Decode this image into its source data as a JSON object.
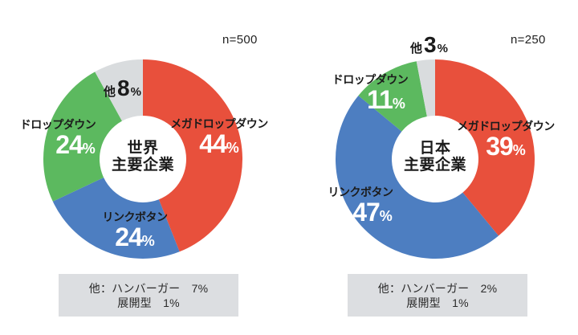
{
  "ui": {
    "percent_sign": "%"
  },
  "chart_data": [
    {
      "type": "pie",
      "subtype": "donut",
      "title": "世界主要企業",
      "center_lines": [
        "世界",
        "主要企業"
      ],
      "sample_size_label": "n=500",
      "categories": [
        "メガドロップダウン",
        "リンクボタン",
        "ドロップダウン",
        "他"
      ],
      "values": [
        44,
        24,
        24,
        8
      ],
      "unit": "%",
      "colors": [
        "#e8503c",
        "#4d7ec1",
        "#5cb95f",
        "#d9dcde"
      ],
      "start_angle_deg": 0,
      "direction": "clockwise",
      "legend_position": "on-slices",
      "note_lines": [
        "他：ハンバーガー　7%",
        "展開型　1%"
      ]
    },
    {
      "type": "pie",
      "subtype": "donut",
      "title": "日本主要企業",
      "center_lines": [
        "日本",
        "主要企業"
      ],
      "sample_size_label": "n=250",
      "categories": [
        "メガドロップダウン",
        "リンクボタン",
        "ドロップダウン",
        "他"
      ],
      "values": [
        39,
        47,
        11,
        3
      ],
      "unit": "%",
      "colors": [
        "#e8503c",
        "#4d7ec1",
        "#5cb95f",
        "#d9dcde"
      ],
      "start_angle_deg": 0,
      "direction": "clockwise",
      "legend_position": "on-slices",
      "note_lines": [
        "他：ハンバーガー　2%",
        "展開型　1%"
      ]
    }
  ]
}
